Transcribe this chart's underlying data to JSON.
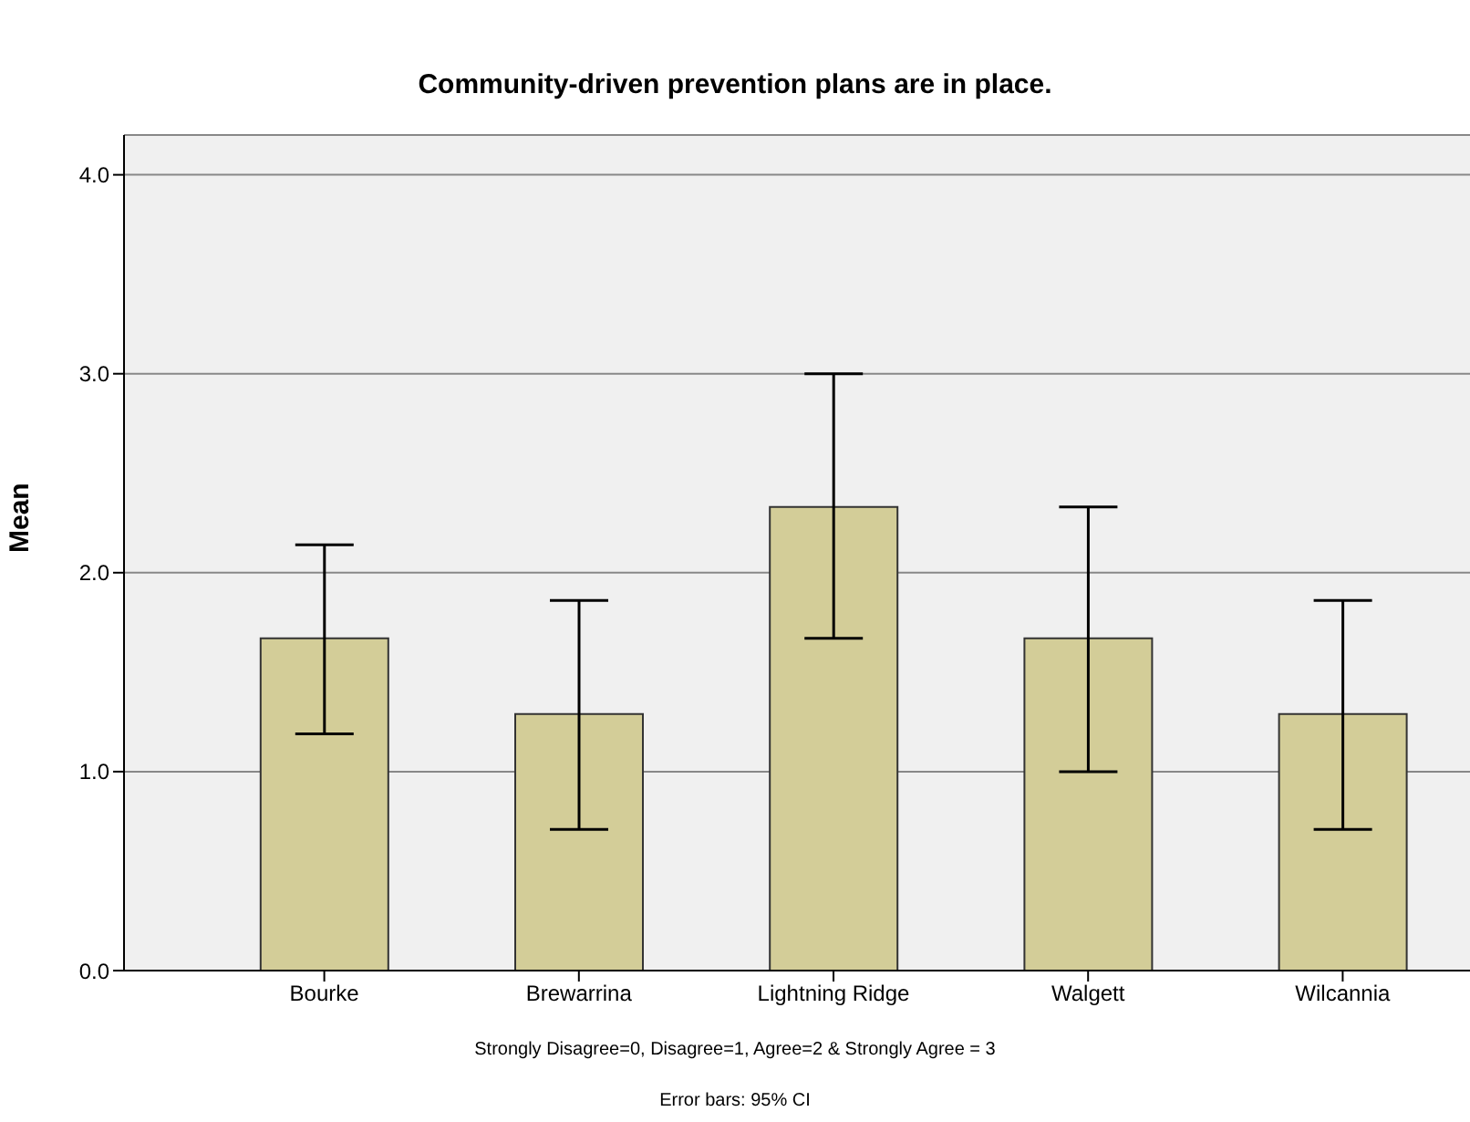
{
  "chart_data": {
    "type": "bar",
    "title": "Community-driven prevention plans are in place.",
    "ylabel": "Mean",
    "categories": [
      "Bourke",
      "Brewarrina",
      "Lightning Ridge",
      "Walgett",
      "Wilcannia"
    ],
    "values": [
      1.67,
      1.29,
      2.33,
      1.67,
      1.29
    ],
    "errors": [
      [
        1.19,
        2.14
      ],
      [
        0.71,
        1.86
      ],
      [
        1.67,
        3.0
      ],
      [
        1.0,
        2.33
      ],
      [
        0.71,
        1.86
      ]
    ],
    "color": "#d3cd98",
    "ylim": [
      0,
      4.2
    ],
    "yticks": [
      {
        "value": 0,
        "label": "0.0"
      },
      {
        "value": 1,
        "label": "1.0"
      },
      {
        "value": 2,
        "label": "2.0"
      },
      {
        "value": 3,
        "label": "3.0"
      },
      {
        "value": 4,
        "label": "4.0"
      }
    ],
    "grid": "y",
    "annotations": [
      "Strongly Disagree=0, Disagree=1, Agree=2 & Strongly Agree = 3",
      "Error bars: 95% CI"
    ]
  }
}
